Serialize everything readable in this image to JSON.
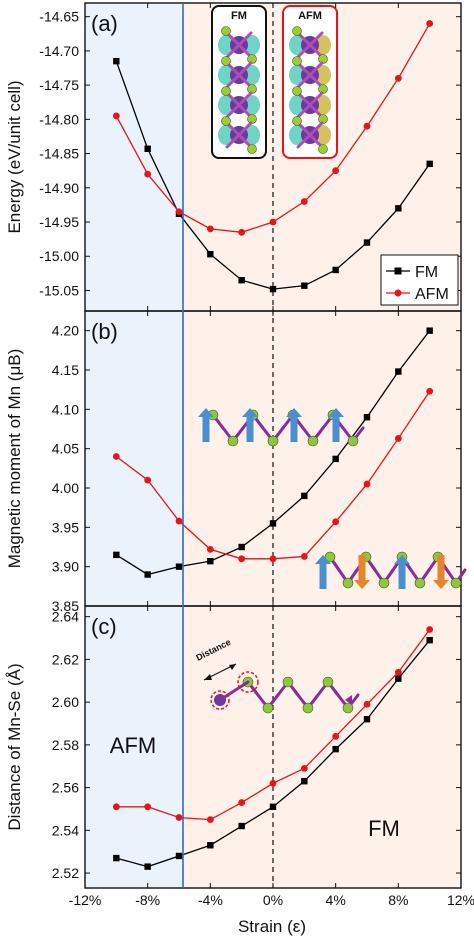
{
  "figure": {
    "x_label": "Strain (ε)",
    "x_ticks": [
      "-12%",
      "-8%",
      "-4%",
      "0%",
      "4%",
      "8%",
      "12%"
    ],
    "region_labels": {
      "afm": "AFM",
      "fm": "FM"
    }
  },
  "insets": {
    "fm_box_label": "FM",
    "afm_box_label": "AFM",
    "distance_label": "Distance"
  },
  "colors": {
    "fm": "#000000",
    "afm": "#e8141b",
    "afm_region": "#eaf2fb",
    "fm_region": "#fdf1ea",
    "boundary": "#2f6db3"
  },
  "chart_data": [
    {
      "type": "line",
      "panel_label": "(a)",
      "ylabel": "Energy (eV/unit cell)",
      "x_unit": "%",
      "xlim": [
        -12,
        12
      ],
      "ylim": [
        -15.08,
        -14.63
      ],
      "yticks": [
        "-14.65",
        "-14.70",
        "-14.75",
        "-14.80",
        "-14.85",
        "-14.90",
        "-14.95",
        "-15.00",
        "-15.05"
      ],
      "legend": "bottom-right",
      "x": [
        -10,
        -8,
        -6,
        -4,
        -2,
        0,
        2,
        4,
        6,
        8,
        10
      ],
      "series": [
        {
          "name": "FM",
          "marker": "square",
          "values": [
            -14.715,
            -14.843,
            -14.938,
            -14.997,
            -15.035,
            -15.048,
            -15.043,
            -15.02,
            -14.98,
            -14.93,
            -14.865
          ]
        },
        {
          "name": "AFM",
          "marker": "circle",
          "values": [
            -14.795,
            -14.88,
            -14.935,
            -14.96,
            -14.965,
            -14.95,
            -14.92,
            -14.875,
            -14.81,
            -14.74,
            -14.66
          ]
        }
      ]
    },
    {
      "type": "line",
      "panel_label": "(b)",
      "ylabel": "Magnetic moment of Mn (μB)",
      "x_unit": "%",
      "xlim": [
        -12,
        12
      ],
      "ylim": [
        3.85,
        4.225
      ],
      "yticks": [
        "4.20",
        "4.15",
        "4.10",
        "4.05",
        "4.00",
        "3.95",
        "3.90",
        "3.85"
      ],
      "x": [
        -10,
        -8,
        -6,
        -4,
        -2,
        0,
        2,
        4,
        6,
        8,
        10
      ],
      "series": [
        {
          "name": "FM",
          "marker": "square",
          "values": [
            3.915,
            3.89,
            3.9,
            3.907,
            3.925,
            3.955,
            3.99,
            4.037,
            4.09,
            4.148,
            4.2
          ]
        },
        {
          "name": "AFM",
          "marker": "circle",
          "values": [
            4.04,
            4.01,
            3.958,
            3.922,
            3.91,
            3.91,
            3.913,
            3.957,
            4.005,
            4.063,
            4.123
          ]
        }
      ]
    },
    {
      "type": "line",
      "panel_label": "(c)",
      "ylabel": "Distance of Mn-Se (Å)",
      "x_unit": "%",
      "xlim": [
        -12,
        12
      ],
      "ylim": [
        2.513,
        2.645
      ],
      "yticks": [
        "2.64",
        "2.62",
        "2.60",
        "2.58",
        "2.56",
        "2.54",
        "2.52"
      ],
      "x": [
        -10,
        -8,
        -6,
        -4,
        -2,
        0,
        2,
        4,
        6,
        8,
        10
      ],
      "series": [
        {
          "name": "FM",
          "marker": "square",
          "values": [
            2.527,
            2.523,
            2.528,
            2.533,
            2.542,
            2.551,
            2.563,
            2.578,
            2.592,
            2.611,
            2.629
          ]
        },
        {
          "name": "AFM",
          "marker": "circle",
          "values": [
            2.551,
            2.551,
            2.546,
            2.545,
            2.553,
            2.562,
            2.569,
            2.584,
            2.599,
            2.614,
            2.634
          ]
        }
      ]
    }
  ]
}
